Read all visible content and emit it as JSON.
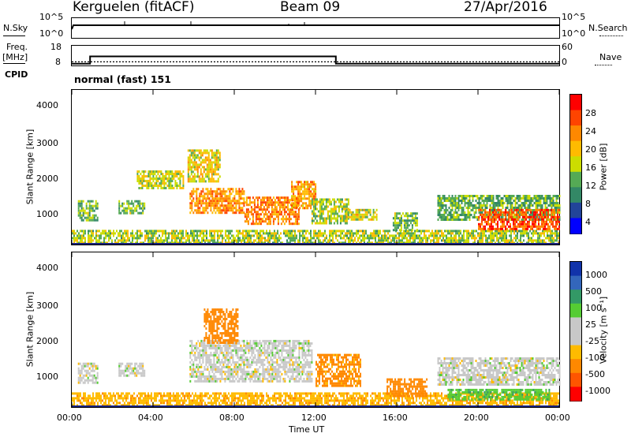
{
  "header": {
    "station": "Kerguelen (fitACF)",
    "beam": "Beam 09",
    "date": "27/Apr/2016"
  },
  "nsky_panel": {
    "left_label": "N.Sky",
    "right_label": "N.Search",
    "ticks_left": [
      "10^5",
      "10^0"
    ],
    "ticks_right": [
      "10^5",
      "10^0"
    ]
  },
  "freq_panel": {
    "left_label_1": "Freq.",
    "left_label_2": "[MHz]",
    "right_label": "Nave",
    "ticks_left": [
      "18",
      "8"
    ],
    "ticks_right": [
      "60",
      "0"
    ]
  },
  "cpid": {
    "label": "CPID",
    "mode": "normal (fast) 151"
  },
  "power_panel": {
    "ylabel": "Slant Range [km]",
    "yticks": [
      "4000",
      "3000",
      "2000",
      "1000"
    ]
  },
  "velocity_panel": {
    "ylabel": "Slant Range [km]",
    "yticks": [
      "4000",
      "3000",
      "2000",
      "1000"
    ]
  },
  "xaxis": {
    "ticks": [
      "00:00",
      "04:00",
      "08:00",
      "12:00",
      "16:00",
      "20:00",
      "00:00"
    ],
    "label": "Time UT"
  },
  "power_scale": {
    "label": "Power [dB]",
    "ticks": [
      "28",
      "24",
      "20",
      "16",
      "12",
      "8",
      "4"
    ],
    "colors": [
      "#ff0000",
      "#ff4400",
      "#ff8800",
      "#ffbb00",
      "#ccdd00",
      "#55aa55",
      "#338866",
      "#224499",
      "#0000ff"
    ]
  },
  "velocity_scale": {
    "label": "Velocity [m s⁻¹]",
    "ticks": [
      "1000",
      "500",
      "100",
      "25",
      "-25",
      "-100",
      "-500",
      "-1000"
    ],
    "colors": [
      "#1133aa",
      "#3366bb",
      "#339966",
      "#55cc33",
      "#c8c8c8",
      "#c8c8c8",
      "#ffbb00",
      "#ff8800",
      "#ff5500",
      "#ff0000"
    ]
  },
  "chart_data": {
    "type": "heatmap",
    "x_range_hours": [
      0,
      24
    ],
    "y_range_km": [
      180,
      4600
    ],
    "frequency_mhz": [
      {
        "t": 0,
        "v": 9
      },
      {
        "t": 0.9,
        "v": 13
      },
      {
        "t": 13.0,
        "v": 9
      },
      {
        "t": 24,
        "v": 9
      }
    ],
    "nave_dotted": 12,
    "power_regions": [
      {
        "t0": 0.0,
        "t1": 24.0,
        "r0": 250,
        "r1": 600,
        "p": 14
      },
      {
        "t0": 0.3,
        "t1": 1.3,
        "r0": 900,
        "r1": 1450,
        "p": 12
      },
      {
        "t0": 2.3,
        "t1": 3.6,
        "r0": 1100,
        "r1": 1450,
        "p": 12
      },
      {
        "t0": 3.2,
        "t1": 5.5,
        "r0": 1800,
        "r1": 2300,
        "p": 15
      },
      {
        "t0": 5.7,
        "t1": 7.3,
        "r0": 2000,
        "r1": 2900,
        "p": 17
      },
      {
        "t0": 5.8,
        "t1": 8.5,
        "r0": 1100,
        "r1": 1800,
        "p": 22
      },
      {
        "t0": 8.5,
        "t1": 11.2,
        "r0": 800,
        "r1": 1550,
        "p": 23
      },
      {
        "t0": 10.8,
        "t1": 12.0,
        "r0": 1200,
        "r1": 2000,
        "p": 21
      },
      {
        "t0": 11.8,
        "t1": 13.6,
        "r0": 800,
        "r1": 1500,
        "p": 14
      },
      {
        "t0": 13.5,
        "t1": 15.0,
        "r0": 900,
        "r1": 1200,
        "p": 16
      },
      {
        "t0": 15.8,
        "t1": 17.0,
        "r0": 600,
        "r1": 1100,
        "p": 12
      },
      {
        "t0": 18.0,
        "t1": 24.0,
        "r0": 900,
        "r1": 1600,
        "p": 11
      },
      {
        "t0": 20.0,
        "t1": 24.0,
        "r0": 600,
        "r1": 1200,
        "p": 26
      }
    ],
    "velocity_regions": [
      {
        "t0": 0.0,
        "t1": 24.0,
        "r0": 250,
        "r1": 600,
        "v": -80
      },
      {
        "t0": 0.3,
        "t1": 1.3,
        "r0": 900,
        "r1": 1450,
        "v": 0
      },
      {
        "t0": 2.3,
        "t1": 3.6,
        "r0": 1100,
        "r1": 1450,
        "v": 0
      },
      {
        "t0": 5.8,
        "t1": 11.8,
        "r0": 900,
        "r1": 2100,
        "v": 0
      },
      {
        "t0": 6.5,
        "t1": 8.2,
        "r0": 2000,
        "r1": 3000,
        "v": -300
      },
      {
        "t0": 12.0,
        "t1": 14.2,
        "r0": 800,
        "r1": 1700,
        "v": -120
      },
      {
        "t0": 15.5,
        "t1": 17.5,
        "r0": 500,
        "r1": 1000,
        "v": -150
      },
      {
        "t0": 18.0,
        "t1": 24.0,
        "r0": 800,
        "r1": 1600,
        "v": 0
      },
      {
        "t0": 18.5,
        "t1": 23.5,
        "r0": 400,
        "r1": 700,
        "v": 80
      }
    ]
  }
}
